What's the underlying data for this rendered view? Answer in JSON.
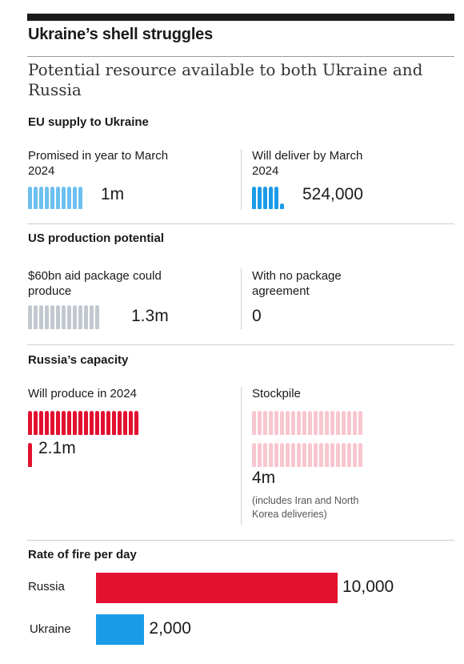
{
  "title": "Ukraine’s shell struggles",
  "subtitle": "Potential resource available to both Ukraine and Russia",
  "colors": {
    "light_blue": "#6cc0f0",
    "blue": "#1a9be8",
    "grey": "#c2c8d0",
    "red": "#e3102f",
    "pink": "#f8c6cf"
  },
  "sections": {
    "eu": {
      "heading": "EU supply to Ukraine",
      "left": {
        "label": "Promised in year to March 2024",
        "value": "1m",
        "shells": 10,
        "color": "light_blue"
      },
      "right": {
        "label": "Will deliver by March 2024",
        "value": "524,000",
        "shells": 5.24,
        "color": "blue"
      }
    },
    "us": {
      "heading": "US production potential",
      "left": {
        "label": "$60bn aid package could produce",
        "value": "1.3m",
        "shells": 13,
        "color": "grey"
      },
      "right": {
        "label": "With no package agreement",
        "value": "0",
        "shells": 0,
        "color": "grey"
      }
    },
    "russia": {
      "heading": "Russia’s capacity",
      "left": {
        "label": "Will produce in 2024",
        "value": "2.1m",
        "shells": 21,
        "color": "red"
      },
      "right": {
        "label": "Stockpile",
        "value": "4m",
        "note": "(includes Iran and North Korea deliveries)",
        "shells": 40,
        "color": "pink"
      }
    }
  },
  "chart_data": {
    "type": "bar",
    "title": "Rate of fire per day",
    "categories": [
      "Russia",
      "Ukraine"
    ],
    "values": [
      10000,
      2000
    ],
    "value_labels": [
      "10,000",
      "2,000"
    ],
    "colors": [
      "#e3102f",
      "#1a9be8"
    ]
  }
}
